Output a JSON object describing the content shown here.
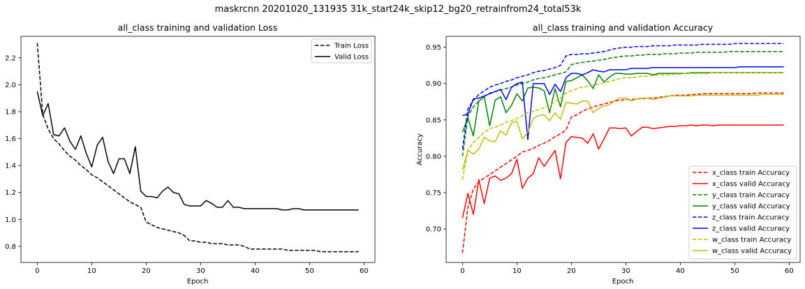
{
  "suptitle": "maskrcnn 20201020_131935 31k_start24k_skip12_bg20_retrainfrom24_total53k",
  "chart_data": [
    {
      "type": "line",
      "title": "all_class training and validation Loss",
      "xlabel": "Epoch",
      "ylabel": "",
      "xlim": [
        -3,
        62
      ],
      "ylim": [
        0.68,
        2.36
      ],
      "xticks": [
        0,
        10,
        20,
        30,
        40,
        50,
        60
      ],
      "yticks": [
        0.8,
        1.0,
        1.2,
        1.4,
        1.6,
        1.8,
        2.0,
        2.2
      ],
      "legend": "top-right",
      "grid": false,
      "series": [
        {
          "name": "Train Loss",
          "color": "#000000",
          "dashed": true,
          "values": [
            2.31,
            1.78,
            1.67,
            1.6,
            1.56,
            1.51,
            1.47,
            1.44,
            1.4,
            1.37,
            1.33,
            1.31,
            1.28,
            1.25,
            1.22,
            1.19,
            1.16,
            1.13,
            1.11,
            1.09,
            0.98,
            0.96,
            0.94,
            0.93,
            0.92,
            0.91,
            0.9,
            0.88,
            0.84,
            0.84,
            0.83,
            0.83,
            0.82,
            0.82,
            0.82,
            0.81,
            0.81,
            0.81,
            0.8,
            0.78,
            0.78,
            0.78,
            0.78,
            0.78,
            0.78,
            0.78,
            0.77,
            0.77,
            0.77,
            0.77,
            0.77,
            0.77,
            0.76,
            0.76,
            0.76,
            0.76,
            0.76,
            0.76,
            0.76,
            0.76
          ]
        },
        {
          "name": "Valid Loss",
          "color": "#000000",
          "dashed": false,
          "values": [
            1.95,
            1.77,
            1.86,
            1.63,
            1.62,
            1.68,
            1.58,
            1.52,
            1.62,
            1.49,
            1.39,
            1.55,
            1.61,
            1.43,
            1.34,
            1.45,
            1.45,
            1.34,
            1.54,
            1.21,
            1.17,
            1.17,
            1.16,
            1.21,
            1.24,
            1.2,
            1.19,
            1.11,
            1.1,
            1.1,
            1.1,
            1.14,
            1.12,
            1.09,
            1.09,
            1.14,
            1.09,
            1.09,
            1.08,
            1.08,
            1.08,
            1.08,
            1.08,
            1.08,
            1.08,
            1.07,
            1.07,
            1.08,
            1.08,
            1.07,
            1.07,
            1.07,
            1.07,
            1.07,
            1.07,
            1.07,
            1.07,
            1.07,
            1.07,
            1.07
          ]
        }
      ]
    },
    {
      "type": "line",
      "title": "all_class training and validation Accuracy",
      "xlabel": "Epoch",
      "ylabel": "Accuracy",
      "xlim": [
        -3,
        62
      ],
      "ylim": [
        0.654,
        0.965
      ],
      "xticks": [
        0,
        10,
        20,
        30,
        40,
        50,
        60
      ],
      "yticks": [
        0.7,
        0.75,
        0.8,
        0.85,
        0.9,
        0.95
      ],
      "legend": "bottom-right",
      "grid": false,
      "series": [
        {
          "name": "x_class train Accuracy",
          "color": "#ff0000",
          "dashed": true,
          "values": [
            0.667,
            0.73,
            0.755,
            0.765,
            0.77,
            0.775,
            0.78,
            0.785,
            0.79,
            0.795,
            0.8,
            0.806,
            0.808,
            0.811,
            0.815,
            0.818,
            0.822,
            0.827,
            0.831,
            0.836,
            0.854,
            0.857,
            0.862,
            0.865,
            0.868,
            0.87,
            0.872,
            0.874,
            0.876,
            0.877,
            0.878,
            0.878,
            0.879,
            0.879,
            0.88,
            0.88,
            0.881,
            0.882,
            0.883,
            0.884,
            0.884,
            0.884,
            0.885,
            0.885,
            0.886,
            0.886,
            0.886,
            0.886,
            0.886,
            0.886,
            0.886,
            0.886,
            0.886,
            0.886,
            0.887,
            0.887,
            0.887,
            0.887,
            0.887,
            0.887
          ]
        },
        {
          "name": "x_class valid Accuracy",
          "color": "#ff0000",
          "dashed": false,
          "values": [
            0.715,
            0.749,
            0.72,
            0.768,
            0.735,
            0.77,
            0.773,
            0.767,
            0.77,
            0.776,
            0.796,
            0.756,
            0.77,
            0.776,
            0.798,
            0.786,
            0.797,
            0.808,
            0.769,
            0.819,
            0.827,
            0.826,
            0.825,
            0.818,
            0.831,
            0.81,
            0.824,
            0.839,
            0.839,
            0.838,
            0.839,
            0.828,
            0.834,
            0.84,
            0.84,
            0.838,
            0.839,
            0.84,
            0.841,
            0.841,
            0.842,
            0.842,
            0.843,
            0.842,
            0.843,
            0.843,
            0.842,
            0.843,
            0.843,
            0.843,
            0.843,
            0.843,
            0.843,
            0.843,
            0.843,
            0.843,
            0.843,
            0.843,
            0.843,
            0.843
          ]
        },
        {
          "name": "y_class train Accuracy",
          "color": "#008000",
          "dashed": true,
          "values": [
            0.8,
            0.855,
            0.868,
            0.876,
            0.882,
            0.887,
            0.889,
            0.891,
            0.893,
            0.895,
            0.898,
            0.9,
            0.902,
            0.905,
            0.907,
            0.908,
            0.91,
            0.912,
            0.914,
            0.916,
            0.926,
            0.928,
            0.929,
            0.93,
            0.931,
            0.932,
            0.933,
            0.935,
            0.936,
            0.937,
            0.938,
            0.938,
            0.939,
            0.939,
            0.94,
            0.94,
            0.94,
            0.941,
            0.941,
            0.941,
            0.942,
            0.942,
            0.942,
            0.943,
            0.943,
            0.943,
            0.943,
            0.943,
            0.943,
            0.944,
            0.944,
            0.944,
            0.944,
            0.944,
            0.944,
            0.944,
            0.944,
            0.944,
            0.944,
            0.944
          ]
        },
        {
          "name": "y_class valid Accuracy",
          "color": "#008000",
          "dashed": false,
          "values": [
            0.833,
            0.853,
            0.828,
            0.876,
            0.882,
            0.842,
            0.877,
            0.882,
            0.86,
            0.87,
            0.886,
            0.876,
            0.894,
            0.895,
            0.894,
            0.89,
            0.86,
            0.893,
            0.868,
            0.903,
            0.904,
            0.908,
            0.912,
            0.904,
            0.893,
            0.912,
            0.902,
            0.909,
            0.914,
            0.914,
            0.913,
            0.913,
            0.914,
            0.914,
            0.914,
            0.912,
            0.914,
            0.914,
            0.914,
            0.914,
            0.914,
            0.914,
            0.915,
            0.915,
            0.915,
            0.915,
            0.915,
            0.915,
            0.915,
            0.915,
            0.915,
            0.915,
            0.915,
            0.915,
            0.915,
            0.915,
            0.915,
            0.915,
            0.915,
            0.915
          ]
        },
        {
          "name": "z_class train Accuracy",
          "color": "#0000ff",
          "dashed": true,
          "values": [
            0.81,
            0.865,
            0.877,
            0.885,
            0.89,
            0.895,
            0.898,
            0.9,
            0.903,
            0.905,
            0.908,
            0.91,
            0.912,
            0.915,
            0.917,
            0.918,
            0.92,
            0.922,
            0.925,
            0.938,
            0.94,
            0.94,
            0.941,
            0.941,
            0.942,
            0.943,
            0.944,
            0.946,
            0.948,
            0.949,
            0.95,
            0.95,
            0.951,
            0.951,
            0.951,
            0.952,
            0.952,
            0.952,
            0.952,
            0.953,
            0.953,
            0.953,
            0.953,
            0.953,
            0.954,
            0.954,
            0.954,
            0.954,
            0.954,
            0.954,
            0.955,
            0.955,
            0.955,
            0.955,
            0.955,
            0.955,
            0.955,
            0.955,
            0.955,
            0.955
          ]
        },
        {
          "name": "z_class valid Accuracy",
          "color": "#0000ff",
          "dashed": false,
          "values": [
            0.856,
            0.858,
            0.879,
            0.88,
            0.883,
            0.886,
            0.889,
            0.892,
            0.878,
            0.895,
            0.9,
            0.902,
            0.823,
            0.9,
            0.9,
            0.9,
            0.885,
            0.899,
            0.889,
            0.908,
            0.914,
            0.914,
            0.912,
            0.915,
            0.919,
            0.917,
            0.916,
            0.919,
            0.919,
            0.919,
            0.919,
            0.921,
            0.921,
            0.921,
            0.921,
            0.922,
            0.922,
            0.922,
            0.922,
            0.922,
            0.922,
            0.922,
            0.922,
            0.922,
            0.922,
            0.922,
            0.922,
            0.922,
            0.922,
            0.922,
            0.922,
            0.923,
            0.923,
            0.923,
            0.923,
            0.923,
            0.923,
            0.923,
            0.923,
            0.923
          ]
        },
        {
          "name": "w_class train Accuracy",
          "color": "#bfbf00",
          "dashed": true,
          "values": [
            0.768,
            0.808,
            0.819,
            0.826,
            0.833,
            0.838,
            0.84,
            0.843,
            0.847,
            0.849,
            0.852,
            0.856,
            0.86,
            0.862,
            0.864,
            0.867,
            0.87,
            0.875,
            0.88,
            0.887,
            0.89,
            0.893,
            0.895,
            0.896,
            0.898,
            0.899,
            0.901,
            0.903,
            0.905,
            0.907,
            0.908,
            0.908,
            0.909,
            0.91,
            0.91,
            0.911,
            0.912,
            0.912,
            0.912,
            0.913,
            0.913,
            0.914,
            0.914,
            0.914,
            0.914,
            0.914,
            0.915,
            0.915,
            0.915,
            0.915,
            0.915,
            0.915,
            0.915,
            0.915,
            0.915,
            0.915,
            0.915,
            0.915,
            0.915,
            0.915
          ]
        },
        {
          "name": "w_class valid Accuracy",
          "color": "#bfbf00",
          "dashed": false,
          "values": [
            0.781,
            0.808,
            0.803,
            0.81,
            0.826,
            0.821,
            0.82,
            0.835,
            0.829,
            0.846,
            0.848,
            0.824,
            0.833,
            0.852,
            0.856,
            0.857,
            0.849,
            0.86,
            0.851,
            0.874,
            0.873,
            0.872,
            0.876,
            0.876,
            0.86,
            0.866,
            0.869,
            0.871,
            0.877,
            0.88,
            0.88,
            0.876,
            0.879,
            0.88,
            0.88,
            0.878,
            0.88,
            0.881,
            0.883,
            0.883,
            0.883,
            0.883,
            0.883,
            0.884,
            0.884,
            0.884,
            0.884,
            0.884,
            0.884,
            0.884,
            0.884,
            0.884,
            0.884,
            0.884,
            0.884,
            0.885,
            0.885,
            0.885,
            0.885,
            0.885
          ]
        }
      ]
    }
  ]
}
